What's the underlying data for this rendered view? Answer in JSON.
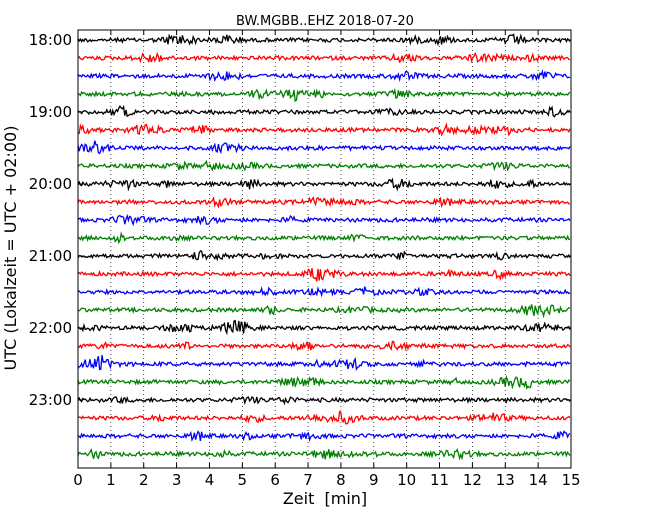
{
  "chart_data": {
    "type": "line",
    "title": "BW.MGBB..EHZ 2018-07-20",
    "xlabel": "Zeit  [min]",
    "ylabel": "UTC (Lokalzeit = UTC + 02:00)",
    "xlim": [
      0,
      15
    ],
    "x_ticks": [
      "0",
      "1",
      "2",
      "3",
      "4",
      "5",
      "6",
      "7",
      "8",
      "9",
      "10",
      "11",
      "12",
      "13",
      "14",
      "15"
    ],
    "y_ticks": [
      "18:00",
      "19:00",
      "20:00",
      "21:00",
      "22:00",
      "23:00"
    ],
    "grid": {
      "vertical_dotted": true
    },
    "trace_colors": [
      "#000000",
      "#ff0000",
      "#0000ff",
      "#008000"
    ],
    "traces": [
      {
        "start": "18:00",
        "color": "#000000"
      },
      {
        "start": "18:15",
        "color": "#ff0000"
      },
      {
        "start": "18:30",
        "color": "#0000ff"
      },
      {
        "start": "18:45",
        "color": "#008000"
      },
      {
        "start": "19:00",
        "color": "#000000"
      },
      {
        "start": "19:15",
        "color": "#ff0000"
      },
      {
        "start": "19:30",
        "color": "#0000ff"
      },
      {
        "start": "19:45",
        "color": "#008000"
      },
      {
        "start": "20:00",
        "color": "#000000"
      },
      {
        "start": "20:15",
        "color": "#ff0000"
      },
      {
        "start": "20:30",
        "color": "#0000ff"
      },
      {
        "start": "20:45",
        "color": "#008000"
      },
      {
        "start": "21:00",
        "color": "#000000"
      },
      {
        "start": "21:15",
        "color": "#ff0000"
      },
      {
        "start": "21:30",
        "color": "#0000ff"
      },
      {
        "start": "21:45",
        "color": "#008000"
      },
      {
        "start": "22:00",
        "color": "#000000"
      },
      {
        "start": "22:15",
        "color": "#ff0000"
      },
      {
        "start": "22:30",
        "color": "#0000ff"
      },
      {
        "start": "22:45",
        "color": "#008000"
      },
      {
        "start": "23:00",
        "color": "#000000"
      },
      {
        "start": "23:15",
        "color": "#ff0000"
      },
      {
        "start": "23:30",
        "color": "#0000ff"
      },
      {
        "start": "23:45",
        "color": "#008000"
      }
    ]
  }
}
